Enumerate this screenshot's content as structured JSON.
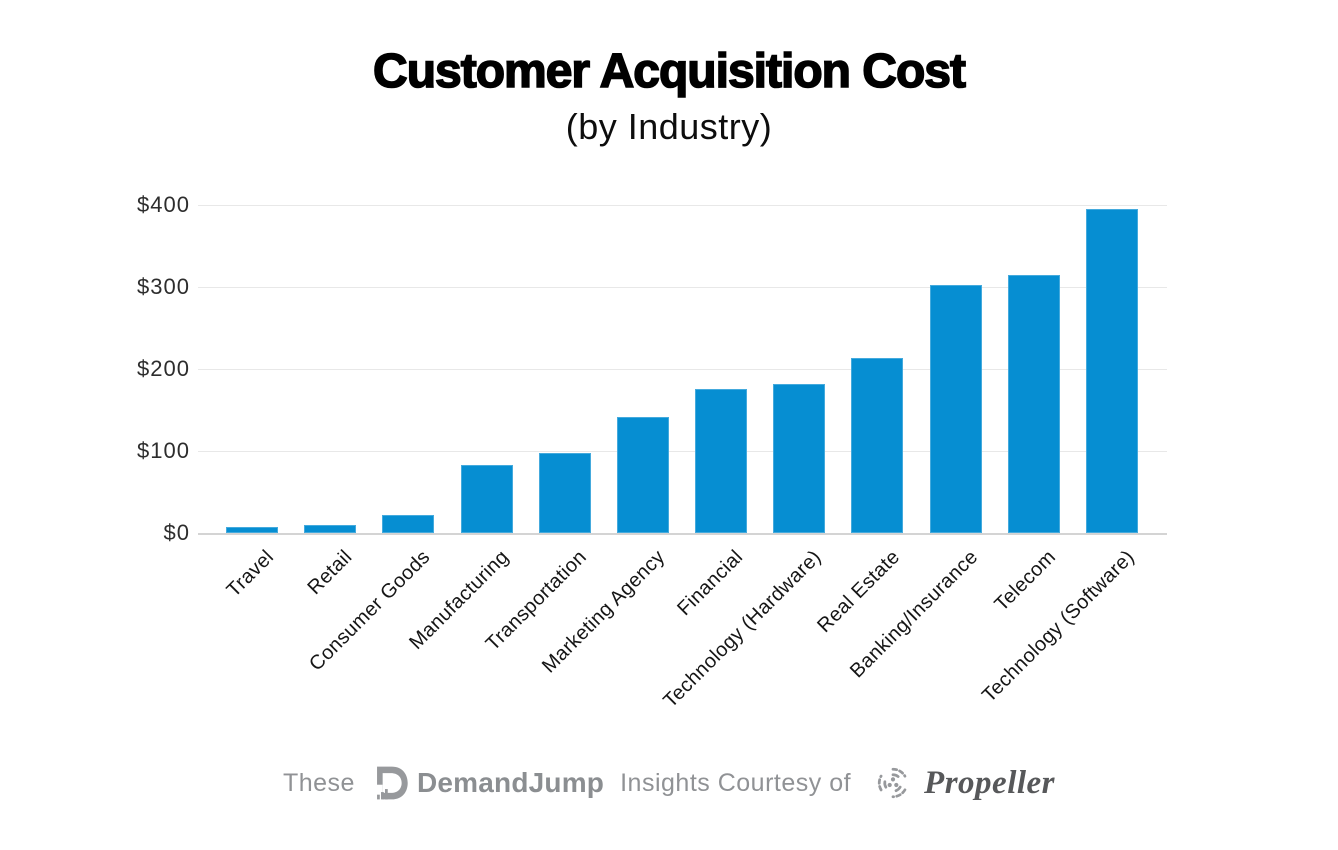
{
  "header": {
    "title": "Customer Acquisition Cost",
    "subtitle": "(by Industry)"
  },
  "chart_data": {
    "type": "bar",
    "title": "Customer Acquisition Cost",
    "subtitle": "(by Industry)",
    "categories": [
      "Travel",
      "Retail",
      "Consumer Goods",
      "Manufacturing",
      "Transportation",
      "Marketing Agency",
      "Financial",
      "Technology (Hardware)",
      "Real Estate",
      "Banking/Insurance",
      "Telecom",
      "Technology (Software)"
    ],
    "values": [
      7,
      10,
      22,
      83,
      98,
      141,
      175,
      182,
      213,
      303,
      315,
      395
    ],
    "xlabel": "",
    "ylabel": "",
    "ylim": [
      0,
      400
    ],
    "yticks": [
      {
        "label": "$0",
        "value": 0
      },
      {
        "label": "$100",
        "value": 100
      },
      {
        "label": "$200",
        "value": 200
      },
      {
        "label": "$300",
        "value": 300
      },
      {
        "label": "$400",
        "value": 400
      }
    ],
    "grid": true,
    "legend": false,
    "x_tick_rotation_deg": 45,
    "bar_color": "#068ed2"
  },
  "footer": {
    "prefix": "These",
    "demandjump_label": "DemandJump",
    "middle": "Insights Courtesy of",
    "propeller_label": "Propeller"
  },
  "colors": {
    "bar": "#068ed2",
    "gridline": "#e8e8e8",
    "axis_line": "#d4d4d4",
    "title_text": "#000000",
    "tick_text": "#2d2d2d",
    "footer_text": "#909295",
    "demandjump_gray": "#8b8e91",
    "propeller_gray": "#57585a",
    "logo_gray": "#97999c"
  }
}
